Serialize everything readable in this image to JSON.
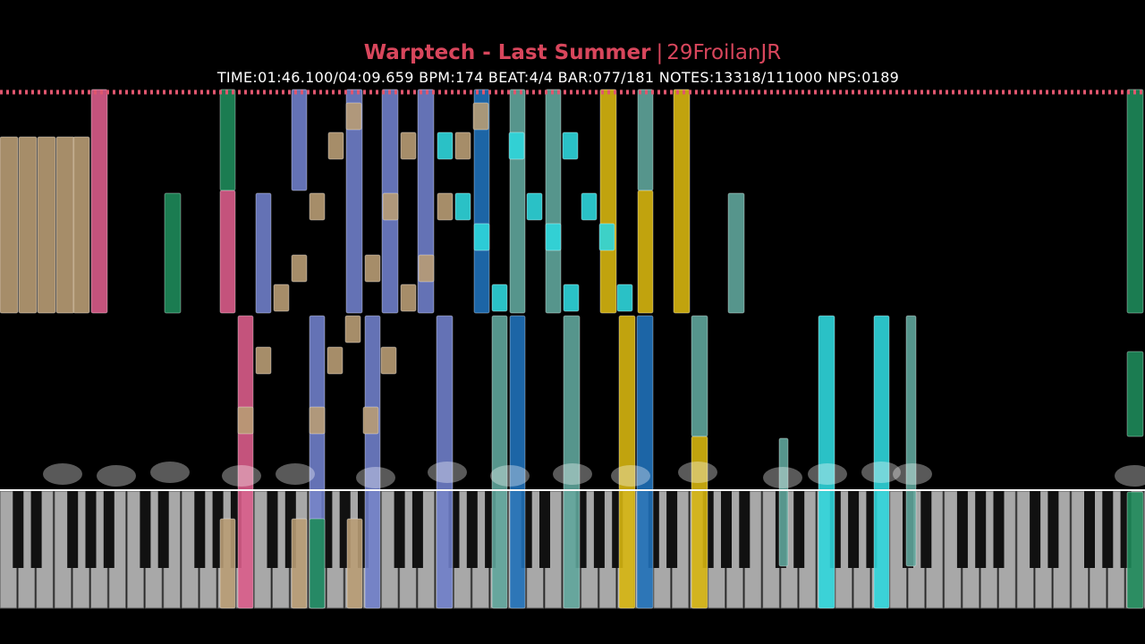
{
  "header": {
    "title": "Warptech - Last Summer",
    "separator": "|",
    "author": "29FroilanJR",
    "stats": "TIME:01:46.100/04:09.659 BPM:174 BEAT:4/4 BAR:077/181 NOTES:13318/111000 NPS:0189"
  }
}
